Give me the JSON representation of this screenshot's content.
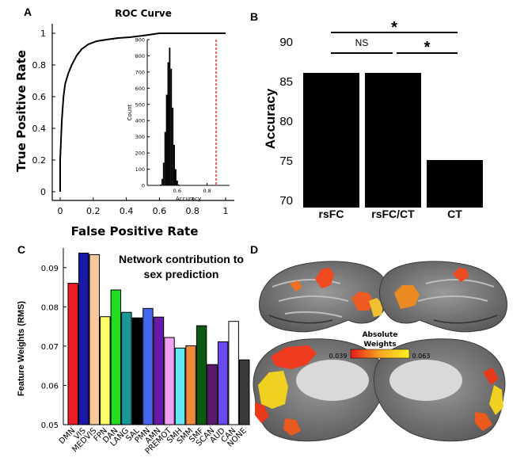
{
  "panels": {
    "a": "A",
    "b": "B",
    "c": "C",
    "d": "D"
  },
  "chart_data": [
    {
      "type": "line",
      "title": "ROC Curve",
      "xlabel": "False Positive Rate",
      "ylabel": "True Positive Rate",
      "xlim": [
        0,
        1
      ],
      "ylim": [
        0,
        1
      ],
      "xticks": [
        "0",
        "0.2",
        "0.4",
        "0.6",
        "0.8",
        "1"
      ],
      "yticks": [
        "0",
        "0.2",
        "0.4",
        "0.6",
        "0.8",
        "1"
      ],
      "series": [
        {
          "x": [
            0,
            0,
            0.01,
            0.02,
            0.03,
            0.05,
            0.07,
            0.1,
            0.13,
            0.17,
            0.22,
            0.28,
            0.35,
            0.42,
            0.5,
            0.6,
            0.7,
            0.8,
            0.9,
            1
          ],
          "y": [
            0,
            0.2,
            0.45,
            0.6,
            0.68,
            0.75,
            0.8,
            0.86,
            0.9,
            0.93,
            0.95,
            0.96,
            0.97,
            0.975,
            0.985,
            1,
            1,
            1,
            1,
            1
          ]
        }
      ],
      "inset": {
        "type": "histogram",
        "xlabel": "Accuracy",
        "ylabel": "Count",
        "xticks": [
          "0.6",
          "0.8"
        ],
        "yticks": [
          "0",
          "100",
          "200",
          "300",
          "400",
          "500",
          "600",
          "700",
          "800",
          "900"
        ],
        "xlim": [
          0.4,
          0.95
        ],
        "ylim": [
          0,
          900
        ],
        "bins_x": [
          0.49,
          0.5,
          0.51,
          0.52,
          0.53,
          0.54,
          0.55,
          0.56,
          0.57,
          0.58,
          0.59,
          0.6,
          0.61
        ],
        "bins_count": [
          5,
          40,
          140,
          330,
          560,
          760,
          850,
          720,
          480,
          250,
          100,
          30,
          5
        ],
        "observed_line": 0.86,
        "observed_color": "#e8201a"
      }
    },
    {
      "type": "bar",
      "ylabel": "Accuracy",
      "categories": [
        "rsFC",
        "rsFC/CT",
        "CT"
      ],
      "values": [
        86,
        86,
        75
      ],
      "ylim": [
        69,
        91
      ],
      "yticks": [
        "70",
        "75",
        "80",
        "85",
        "90"
      ],
      "bar_color": "#000000",
      "comparisons": [
        {
          "label": "*",
          "from": "rsFC",
          "to": "CT"
        },
        {
          "label": "NS",
          "from": "rsFC",
          "to": "rsFC/CT"
        },
        {
          "label": "*",
          "from": "rsFC/CT",
          "to": "CT"
        }
      ]
    },
    {
      "type": "bar",
      "title": "Network contribution to sex prediction",
      "ylabel": "Feature Weights (RMS)",
      "ylim": [
        0.05,
        0.095
      ],
      "yticks": [
        "0.05",
        "0.06",
        "0.07",
        "0.08",
        "0.09"
      ],
      "categories": [
        "DMN",
        "VIS",
        "MEDVIS",
        "FPN",
        "DAN",
        "LANG",
        "SAL",
        "PMN",
        "AMN",
        "PREMOT",
        "SMH",
        "SMM",
        "SMF",
        "SCAN",
        "AUD",
        "CAN",
        "NONE"
      ],
      "values": [
        0.086,
        0.0937,
        0.0933,
        0.0775,
        0.0843,
        0.0786,
        0.0772,
        0.0796,
        0.0774,
        0.0722,
        0.0695,
        0.0701,
        0.0752,
        0.0653,
        0.0711,
        0.0763,
        0.0665
      ],
      "colors": [
        "#ee1c24",
        "#1a1aa8",
        "#f8c89a",
        "#ffff66",
        "#22dd22",
        "#1a9898",
        "#000000",
        "#4466ee",
        "#6a1aa8",
        "#f0a0f0",
        "#66e8f4",
        "#f08a3a",
        "#0e5a12",
        "#5a1a6e",
        "#6a4af0",
        "#ffffff",
        "#3a3a3a"
      ]
    },
    {
      "type": "heatmap",
      "legend_title": "Absolute Weights",
      "range_labels": [
        "0.039",
        "0.063"
      ],
      "colormap": [
        "#e81818",
        "#f5a623",
        "#fff020"
      ]
    }
  ]
}
